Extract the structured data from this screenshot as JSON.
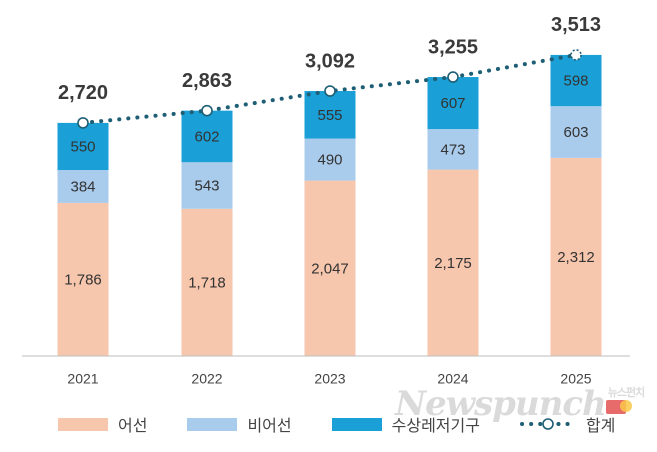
{
  "chart_data": {
    "type": "bar",
    "categories": [
      "2021",
      "2022",
      "2023",
      "2024",
      "2025"
    ],
    "series": [
      {
        "name": "어선",
        "values": [
          1786,
          1718,
          2047,
          2175,
          2312
        ],
        "color": "#f6c6ad"
      },
      {
        "name": "비어선",
        "values": [
          384,
          543,
          490,
          473,
          603
        ],
        "color": "#a9cbec"
      },
      {
        "name": "수상레저기구",
        "values": [
          550,
          602,
          555,
          607,
          598
        ],
        "color": "#1a9fd6"
      }
    ],
    "line": {
      "name": "합계",
      "values": [
        2720,
        2863,
        3092,
        3255,
        3513
      ],
      "color": "#1f5f75",
      "style": "dotted"
    },
    "stacked": true,
    "legend_position": "bottom",
    "grid": false,
    "ylim": [
      0,
      3800
    ]
  },
  "watermark": {
    "text": "Newspunch",
    "sub": "뉴스펀치",
    "icon_label": "NEWSPUNCH"
  }
}
